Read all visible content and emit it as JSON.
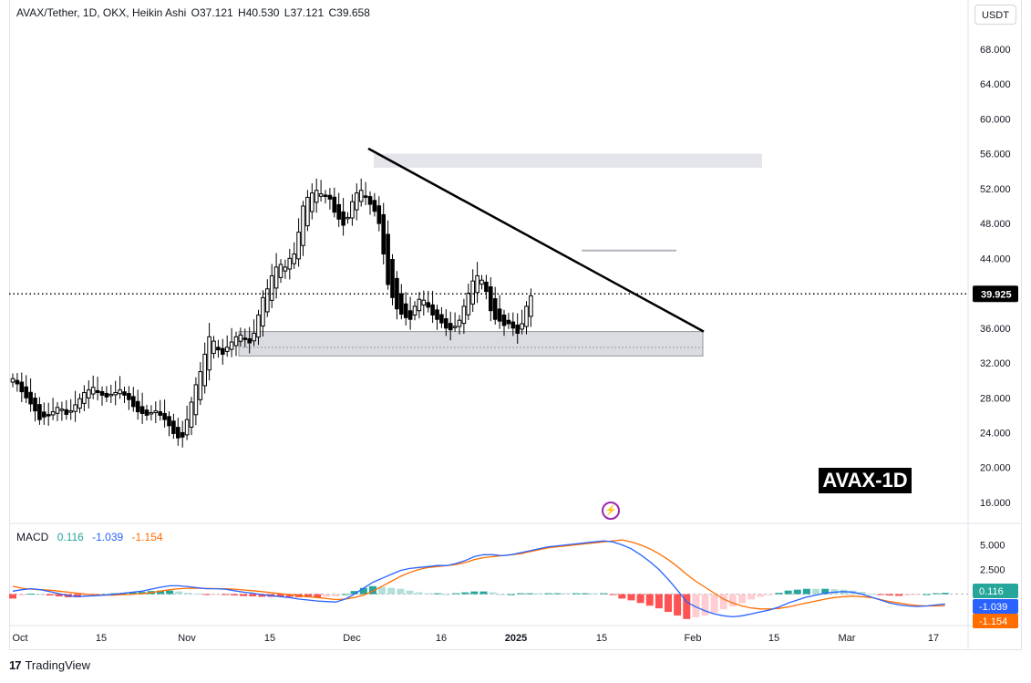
{
  "header": {
    "symbol": "AVAX/Tether, 1D, OKX, Heikin Ashi",
    "open": "O37.121",
    "high": "H40.530",
    "low": "L37.121",
    "close": "C39.658"
  },
  "currency_button": "USDT",
  "watermark": "AVAX-1D",
  "branding": "TradingView",
  "last_price_label": "39.925",
  "colors": {
    "up": "#000000",
    "down": "#000000",
    "trendline": "#000000",
    "zone": "#d9d9e3",
    "macd_line": "#2962ff",
    "signal_line": "#ff6d00",
    "hist_pos_strong": "#26a69a",
    "hist_pos_weak": "#b2dfdb",
    "hist_neg_strong": "#ff5252",
    "hist_neg_weak": "#ffcdd2"
  },
  "chart_data": {
    "type": "candlestick",
    "title": "AVAX/Tether, 1D, OKX, Heikin Ashi",
    "y_axis": {
      "ticks": [
        "68.000",
        "64.000",
        "60.000",
        "56.000",
        "52.000",
        "48.000",
        "44.000",
        "40.000",
        "36.000",
        "32.000",
        "28.000",
        "24.000",
        "20.000",
        "16.000"
      ],
      "range": [
        13.8,
        70.5
      ]
    },
    "x_axis": {
      "ticks": [
        "Oct",
        "15",
        "Nov",
        "15",
        "Dec",
        "16",
        "2025",
        "15",
        "Feb",
        "15",
        "Mar",
        "17"
      ]
    },
    "current_price": 39.925,
    "candles_close": [
      30.2,
      29.6,
      28.7,
      28.0,
      27.3,
      26.5,
      25.5,
      25.8,
      26.0,
      26.4,
      26.9,
      26.7,
      26.1,
      26.5,
      27.2,
      27.9,
      28.6,
      28.9,
      29.2,
      28.6,
      28.3,
      28.1,
      28.4,
      28.6,
      28.9,
      28.3,
      27.8,
      27.0,
      26.4,
      26.2,
      26.0,
      26.3,
      26.5,
      26.0,
      25.5,
      24.8,
      23.9,
      23.4,
      23.5,
      25.5,
      27.5,
      29.5,
      31.0,
      33.0,
      35.0,
      34.5,
      33.5,
      33.0,
      33.8,
      34.4,
      35.0,
      35.2,
      34.7,
      34.3,
      35.4,
      37.5,
      39.5,
      40.5,
      42.0,
      43.0,
      43.3,
      43.0,
      44.0,
      44.5,
      47.0,
      50.0,
      51.0,
      51.5,
      51.8,
      51.4,
      51.2,
      50.8,
      49.3,
      48.5,
      47.8,
      48.7,
      50.5,
      51.5,
      51.8,
      51.0,
      50.2,
      49.4,
      48.0,
      44.5,
      41.0,
      39.5,
      38.2,
      37.6,
      37.2,
      37.0,
      38.5,
      39.3,
      39.2,
      38.4,
      37.5,
      37.0,
      36.6,
      36.0,
      35.8,
      36.2,
      36.9,
      38.5,
      40.0,
      41.4,
      42.0,
      41.5,
      40.2,
      38.0,
      37.0,
      36.8,
      36.3,
      36.5,
      36.0,
      35.4,
      36.5,
      38.5,
      39.7
    ],
    "resistance_zone": [
      54.4,
      56.0
    ],
    "support_zone": [
      32.8,
      35.6
    ],
    "level_line": 44.9,
    "trendline": {
      "from": [
        "Dec 5",
        56.6
      ],
      "to": [
        "Jan 31",
        35.6
      ]
    },
    "macd": {
      "label": "MACD",
      "values": {
        "histogram": "0.116",
        "macd": "-1.039",
        "signal": "-1.154"
      },
      "axis_ticks": [
        "5.000",
        "2.500"
      ],
      "range": [
        -3.0,
        6.8
      ],
      "macd_line": [
        0.3,
        0.45,
        0.55,
        0.45,
        0.25,
        0.05,
        -0.15,
        -0.25,
        -0.2,
        -0.15,
        -0.1,
        0.0,
        0.1,
        0.2,
        0.3,
        0.5,
        0.7,
        0.85,
        0.85,
        0.75,
        0.65,
        0.55,
        0.55,
        0.5,
        0.35,
        0.2,
        0.1,
        -0.05,
        -0.15,
        -0.25,
        -0.35,
        -0.5,
        -0.6,
        -0.7,
        -0.75,
        -0.8,
        -0.5,
        0.0,
        0.6,
        1.2,
        1.6,
        2.0,
        2.4,
        2.6,
        2.7,
        2.8,
        2.9,
        2.9,
        3.1,
        3.4,
        3.8,
        4.0,
        4.0,
        3.9,
        4.0,
        4.2,
        4.4,
        4.6,
        4.8,
        4.9,
        5.0,
        5.1,
        5.2,
        5.3,
        5.4,
        5.3,
        5.0,
        4.6,
        4.0,
        3.3,
        2.5,
        1.5,
        0.4,
        -0.8,
        -1.3,
        -1.7,
        -2.0,
        -2.2,
        -2.3,
        -2.2,
        -2.0,
        -1.8,
        -1.6,
        -1.3,
        -0.9,
        -0.6,
        -0.3,
        -0.1,
        0.1,
        0.2,
        0.25,
        0.2,
        0.0,
        -0.3,
        -0.6,
        -0.9,
        -1.1,
        -1.2,
        -1.25,
        -1.2,
        -1.1,
        -1.0
      ],
      "signal_line": [
        0.8,
        0.6,
        0.5,
        0.45,
        0.4,
        0.3,
        0.2,
        0.1,
        0.0,
        -0.05,
        -0.1,
        -0.1,
        -0.05,
        0.0,
        0.05,
        0.15,
        0.3,
        0.45,
        0.55,
        0.6,
        0.6,
        0.58,
        0.56,
        0.55,
        0.5,
        0.42,
        0.35,
        0.25,
        0.15,
        0.05,
        -0.05,
        -0.15,
        -0.25,
        -0.35,
        -0.45,
        -0.55,
        -0.5,
        -0.35,
        -0.1,
        0.3,
        0.8,
        1.3,
        1.8,
        2.2,
        2.5,
        2.7,
        2.8,
        2.9,
        3.0,
        3.2,
        3.5,
        3.7,
        3.8,
        3.9,
        4.0,
        4.1,
        4.3,
        4.5,
        4.7,
        4.8,
        4.9,
        5.0,
        5.1,
        5.2,
        5.3,
        5.4,
        5.5,
        5.3,
        5.0,
        4.6,
        4.1,
        3.5,
        2.8,
        2.0,
        1.3,
        0.7,
        0.1,
        -0.5,
        -0.9,
        -1.2,
        -1.4,
        -1.5,
        -1.5,
        -1.45,
        -1.3,
        -1.1,
        -0.9,
        -0.7,
        -0.5,
        -0.35,
        -0.25,
        -0.2,
        -0.25,
        -0.35,
        -0.55,
        -0.75,
        -0.9,
        -1.05,
        -1.15,
        -1.2,
        -1.2,
        -1.15
      ]
    }
  }
}
